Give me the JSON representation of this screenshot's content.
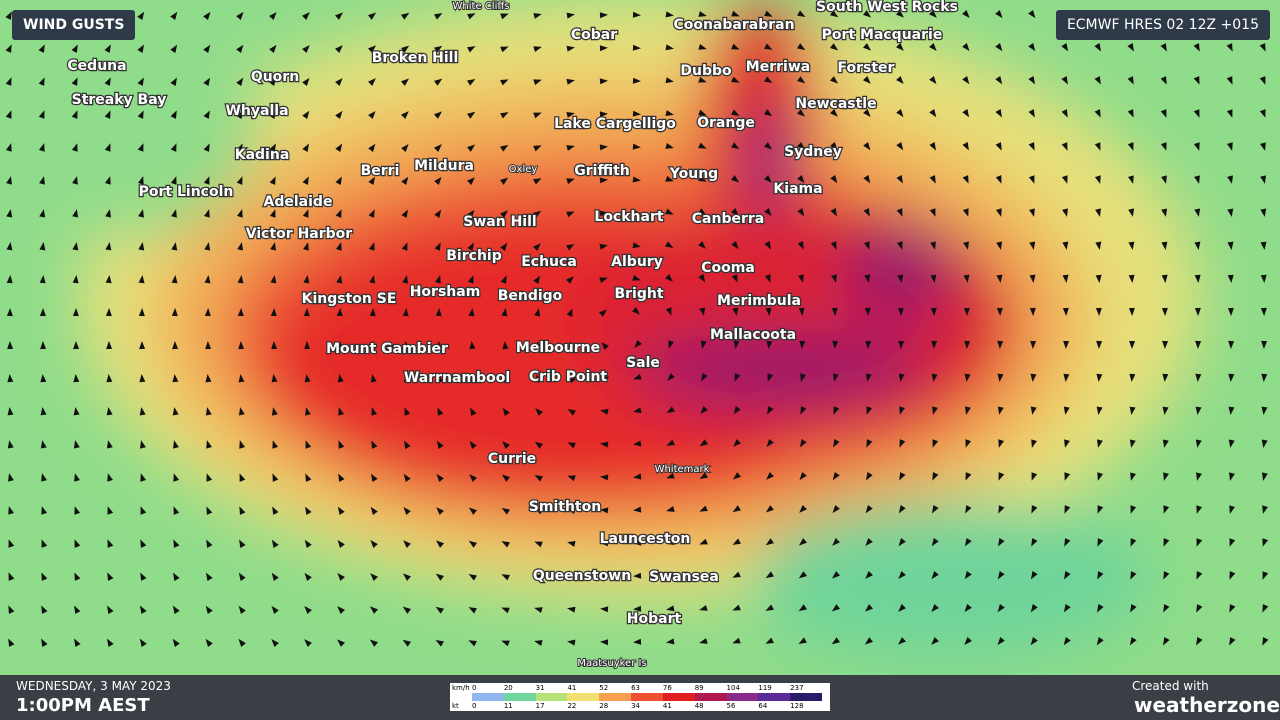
{
  "header": {
    "title": "WIND GUSTS",
    "model": "ECMWF HRES 02 12Z +015"
  },
  "places": [
    "White Cliffs",
    "Cobar",
    "Coonabarabran",
    "South West Rocks",
    "Port Macquarie",
    "Ceduna",
    "Broken Hill",
    "Quorn",
    "Dubbo",
    "Merriwa",
    "Forster",
    "Streaky Bay",
    "Whyalla",
    "Newcastle",
    "Lake Cargelligo",
    "Orange",
    "Kadina",
    "Sydney",
    "Berri",
    "Mildura",
    "Oxley",
    "Griffith",
    "Young",
    "Kiama",
    "Port Lincoln",
    "Adelaide",
    "Swan Hill",
    "Lockhart",
    "Canberra",
    "Victor Harbor",
    "Birchip",
    "Echuca",
    "Albury",
    "Cooma",
    "Horsham",
    "Bendigo",
    "Bright",
    "Merimbula",
    "Kingston SE",
    "Mallacoota",
    "Mount Gambier",
    "Melbourne",
    "Sale",
    "Warrnambool",
    "Crib Point",
    "Currie",
    "Whitemark",
    "Smithton",
    "Launceston",
    "Queenstown",
    "Swansea",
    "Hobart",
    "Maatsuyker Is"
  ],
  "footer": {
    "date": "WEDNESDAY, 3 MAY 2023",
    "time": "1:00PM AEST",
    "credit": "Created with",
    "brand": "weatherzone"
  },
  "legend": {
    "kmh_label": "km/h",
    "kt_label": "kt",
    "kmh": [
      0,
      20,
      31,
      41,
      52,
      63,
      76,
      89,
      104,
      119,
      237
    ],
    "kt": [
      0,
      11,
      17,
      22,
      28,
      34,
      41,
      48,
      56,
      64,
      128
    ]
  }
}
